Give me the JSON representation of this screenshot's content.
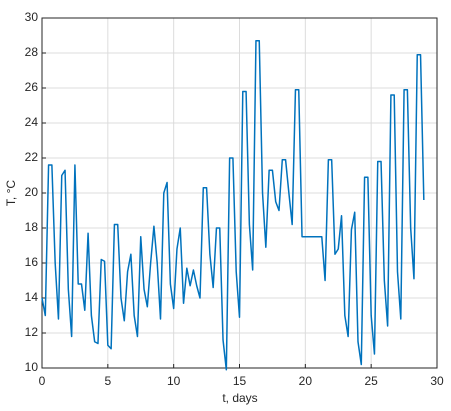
{
  "chart_data": {
    "type": "line",
    "xlabel": "t, days",
    "ylabel": "T, °C",
    "x": [
      0,
      0.25,
      0.5,
      0.75,
      1,
      1.25,
      1.5,
      1.75,
      2,
      2.25,
      2.5,
      2.75,
      3,
      3.25,
      3.5,
      3.75,
      4,
      4.25,
      4.5,
      4.75,
      5,
      5.25,
      5.5,
      5.75,
      6,
      6.25,
      6.5,
      6.75,
      7,
      7.25,
      7.5,
      7.75,
      8,
      8.25,
      8.5,
      8.75,
      9,
      9.25,
      9.5,
      9.75,
      10,
      10.25,
      10.5,
      10.75,
      11,
      11.25,
      11.5,
      11.75,
      12,
      12.25,
      12.5,
      12.75,
      13,
      13.25,
      13.5,
      13.75,
      14,
      14.25,
      14.5,
      14.75,
      15,
      15.25,
      15.5,
      15.75,
      16,
      16.25,
      16.5,
      16.75,
      17,
      17.25,
      17.5,
      17.75,
      18,
      18.25,
      18.5,
      18.75,
      19,
      19.25,
      19.5,
      19.75,
      20,
      20.5,
      21,
      21.25,
      21.5,
      21.75,
      22,
      22.25,
      22.5,
      22.75,
      23,
      23.25,
      23.5,
      23.75,
      24,
      24.25,
      24.5,
      24.75,
      25,
      25.25,
      25.5,
      25.75,
      26,
      26.25,
      26.5,
      26.75,
      27,
      27.25,
      27.5,
      27.75,
      28,
      28.25,
      28.5,
      28.75,
      29
    ],
    "values": [
      14,
      13,
      21.6,
      21.6,
      16,
      12.8,
      21,
      21.3,
      14.5,
      11.8,
      21.6,
      14.8,
      14.8,
      13.3,
      17.7,
      13,
      11.5,
      11.4,
      16.2,
      16.1,
      11.3,
      11.1,
      18.2,
      18.2,
      14,
      12.7,
      15.5,
      16.5,
      13,
      11.8,
      17.5,
      14.5,
      13.5,
      16,
      18.1,
      16,
      12.8,
      20,
      20.6,
      14.8,
      13.4,
      16.8,
      18,
      13.7,
      15.7,
      14.7,
      15.6,
      14.7,
      14,
      20.3,
      20.3,
      16.5,
      14.6,
      18,
      18,
      11.6,
      9.9,
      22,
      22,
      15.5,
      12.9,
      25.8,
      25.8,
      18.2,
      15.6,
      28.7,
      28.7,
      20,
      16.9,
      21.3,
      21.3,
      19.5,
      19,
      21.9,
      21.9,
      20,
      18.2,
      25.9,
      25.9,
      17.5,
      17.5,
      17.5,
      17.5,
      17.5,
      15,
      21.9,
      21.9,
      16.5,
      16.8,
      18.7,
      13,
      11.8,
      17.9,
      18.9,
      11.5,
      10.2,
      20.9,
      20.9,
      13,
      10.8,
      21.8,
      21.8,
      15,
      12.4,
      25.6,
      25.6,
      15.5,
      12.8,
      25.9,
      25.9,
      18,
      15.1,
      27.9,
      27.9,
      19.6
    ],
    "color": "#0072bd",
    "xlim": [
      0,
      30
    ],
    "xticks": [
      0,
      5,
      10,
      15,
      20,
      25,
      30
    ],
    "ylim": [
      10,
      30
    ],
    "yticks": [
      10,
      12,
      14,
      16,
      18,
      20,
      22,
      24,
      26,
      28,
      30
    ],
    "grid": true
  }
}
